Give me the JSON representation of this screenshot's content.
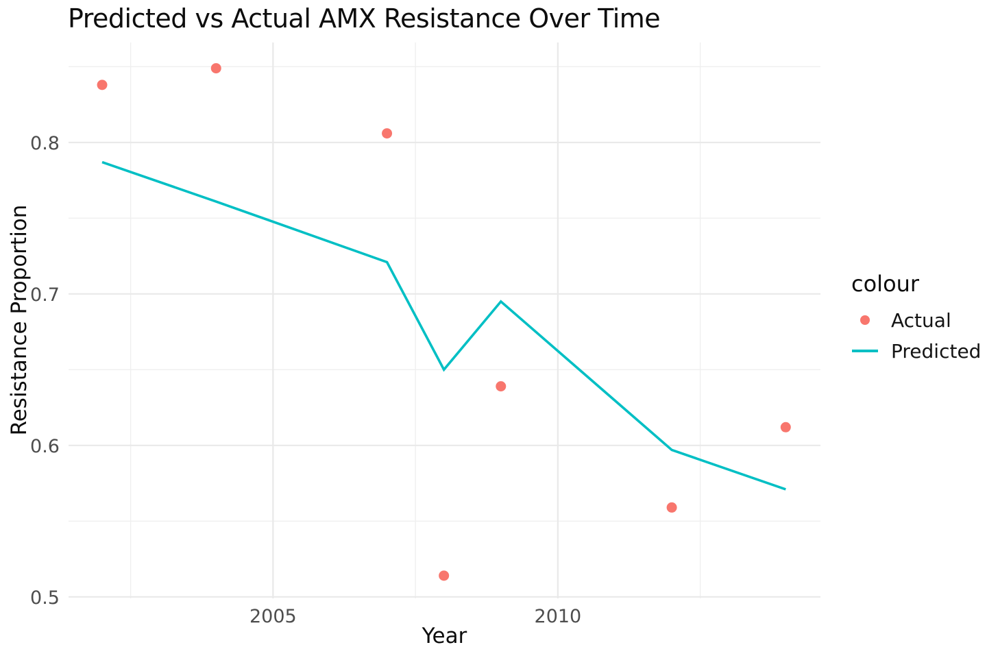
{
  "chart": {
    "title": "Predicted vs Actual AMX Resistance Over Time",
    "xlabel": "Year",
    "ylabel": "Resistance Proportion"
  },
  "legend": {
    "title": "colour",
    "items": [
      {
        "label": "Actual",
        "key": "point",
        "color": "#F8766D"
      },
      {
        "label": "Predicted",
        "key": "line",
        "color": "#00BFC4"
      }
    ]
  },
  "chart_data": {
    "type": "line",
    "title": "Predicted vs Actual AMX Resistance Over Time",
    "xlabel": "Year",
    "ylabel": "Resistance Proportion",
    "series": [
      {
        "name": "Actual",
        "type": "scatter",
        "color": "#F8766D",
        "x": [
          2002,
          2004,
          2007,
          2008,
          2009,
          2012,
          2014
        ],
        "y": [
          0.838,
          0.849,
          0.806,
          0.514,
          0.639,
          0.559,
          0.612
        ]
      },
      {
        "name": "Predicted",
        "type": "line",
        "color": "#00BFC4",
        "x": [
          2002,
          2004,
          2007,
          2008,
          2009,
          2012,
          2014
        ],
        "y": [
          0.787,
          0.761,
          0.721,
          0.65,
          0.695,
          0.597,
          0.571
        ]
      }
    ],
    "xlim": [
      2001.41,
      2014.61
    ],
    "ylim": [
      0.499,
      0.866
    ],
    "x_ticks": [
      2005,
      2010
    ],
    "x_minor_ticks": [
      2002.5,
      2007.5,
      2012.5
    ],
    "y_ticks": [
      0.5,
      0.6,
      0.7,
      0.8
    ],
    "y_minor_ticks": [
      0.55,
      0.65,
      0.75,
      0.85
    ],
    "grid": true,
    "grid_major_color": "#E9E9E9",
    "grid_minor_color": "#EFEFEF",
    "tick_label_color": "#4D4D4D",
    "text_color": "#000000",
    "background": "#FFFFFF",
    "legend_position": "right"
  }
}
